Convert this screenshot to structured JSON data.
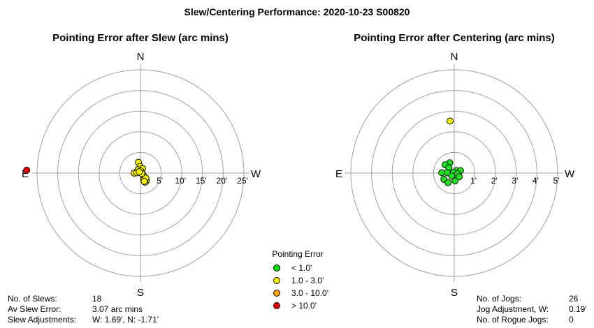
{
  "title": "Slew/Centering Performance: 2020-10-23 S00820",
  "chart_data": [
    {
      "type": "scatter",
      "title": "Pointing Error after Slew (arc mins)",
      "directions": {
        "north": "N",
        "south": "S",
        "east": "E",
        "west": "W"
      },
      "ring_labels": [
        "5'",
        "10'",
        "15'",
        "20'",
        "25'"
      ],
      "ring_values": [
        5,
        10,
        15,
        20,
        25
      ],
      "points": [
        {
          "w": -0.5,
          "n": 2.6,
          "c": "yellow"
        },
        {
          "w": -0.1,
          "n": 1.6,
          "c": "yellow"
        },
        {
          "w": 0.5,
          "n": 1.1,
          "c": "yellow"
        },
        {
          "w": -0.6,
          "n": 0.8,
          "c": "yellow"
        },
        {
          "w": 0.1,
          "n": 0.5,
          "c": "yellow"
        },
        {
          "w": -1.5,
          "n": 0.0,
          "c": "yellow"
        },
        {
          "w": -0.9,
          "n": 0.1,
          "c": "yellow"
        },
        {
          "w": 0.6,
          "n": -0.4,
          "c": "yellow"
        },
        {
          "w": 1.0,
          "n": -1.0,
          "c": "yellow"
        },
        {
          "w": 1.2,
          "n": -1.4,
          "c": "yellow"
        },
        {
          "w": 1.4,
          "n": -1.9,
          "c": "yellow"
        },
        {
          "w": 1.1,
          "n": -2.2,
          "c": "yellow"
        },
        {
          "w": 0.8,
          "n": -1.6,
          "c": "orange"
        },
        {
          "w": 1.3,
          "n": -1.2,
          "c": "yellow"
        },
        {
          "w": 0.9,
          "n": -2.0,
          "c": "yellow"
        },
        {
          "w": 0.3,
          "n": -0.1,
          "c": "yellow"
        },
        {
          "w": -0.3,
          "n": 0.3,
          "c": "yellow"
        },
        {
          "w": -27.5,
          "n": 0.7,
          "c": "red"
        }
      ],
      "stats": [
        {
          "label": "No. of Slews:",
          "value": "18"
        },
        {
          "label": "Av Slew Error:",
          "value": "3.07 arc mins"
        },
        {
          "label": "Slew Adjustments:",
          "value": "W: 1.69', N: -1.71'"
        }
      ]
    },
    {
      "type": "scatter",
      "title": "Pointing Error after Centering (arc mins)",
      "directions": {
        "north": "N",
        "south": "S",
        "east": "E",
        "west": "W"
      },
      "ring_labels": [
        "1'",
        "2'",
        "3'",
        "4'",
        "5'"
      ],
      "ring_values": [
        1,
        2,
        3,
        4,
        5
      ],
      "points": [
        {
          "w": -0.22,
          "n": 0.5,
          "c": "green"
        },
        {
          "w": -0.44,
          "n": 0.4,
          "c": "green"
        },
        {
          "w": -0.26,
          "n": 0.26,
          "c": "green"
        },
        {
          "w": 0.1,
          "n": 0.12,
          "c": "green"
        },
        {
          "w": -0.6,
          "n": 0.02,
          "c": "green"
        },
        {
          "w": -0.34,
          "n": 0.02,
          "c": "green"
        },
        {
          "w": -0.04,
          "n": 0.03,
          "c": "green"
        },
        {
          "w": 0.3,
          "n": 0.12,
          "c": "green"
        },
        {
          "w": -0.12,
          "n": -0.14,
          "c": "green"
        },
        {
          "w": 0.16,
          "n": -0.04,
          "c": "green"
        },
        {
          "w": -0.5,
          "n": -0.3,
          "c": "green"
        },
        {
          "w": 0.04,
          "n": -0.38,
          "c": "green"
        },
        {
          "w": 0.24,
          "n": -0.18,
          "c": "green"
        },
        {
          "w": -0.3,
          "n": -0.46,
          "c": "green"
        },
        {
          "w": -0.2,
          "n": 2.52,
          "c": "yellow"
        }
      ],
      "stats": [
        {
          "label": "No. of Jogs:",
          "value": "26"
        },
        {
          "label": "Jog Adjustment, W:",
          "value": "0.19'"
        },
        {
          "label": "No. of Rogue Jogs:",
          "value": "0"
        }
      ]
    }
  ],
  "legend": {
    "title": "Pointing Error",
    "items": [
      {
        "label": "< 1.0'",
        "color": "#00e000"
      },
      {
        "label": "1.0 - 3.0'",
        "color": "#f0f000"
      },
      {
        "label": "3.0 - 10.0'",
        "color": "#ffa000"
      },
      {
        "label": "> 10.0'",
        "color": "#e00000"
      }
    ]
  },
  "colors": {
    "green": "#1fe01f",
    "yellow": "#f0f000",
    "orange": "#ffa000",
    "red": "#e00000",
    "grid": "#a0a0a0"
  }
}
